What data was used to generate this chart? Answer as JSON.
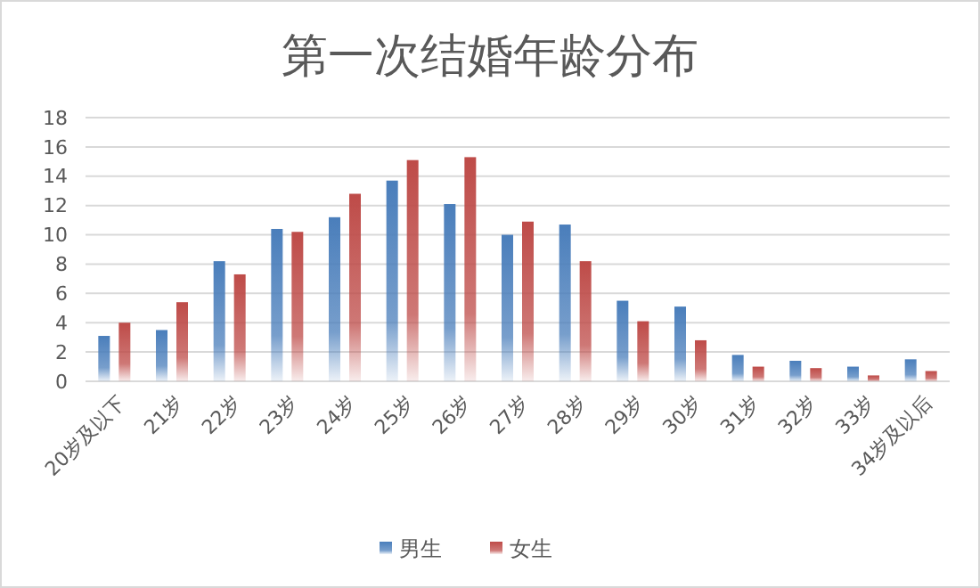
{
  "chart_data": {
    "type": "bar",
    "title": "第一次结婚年龄分布",
    "categories": [
      "20岁及以下",
      "21岁",
      "22岁",
      "23岁",
      "24岁",
      "25岁",
      "26岁",
      "27岁",
      "28岁",
      "29岁",
      "30岁",
      "31岁",
      "32岁",
      "33岁",
      "34岁及以后"
    ],
    "series": [
      {
        "name": "男生",
        "color": "#4a7ebb",
        "values": [
          3.1,
          3.5,
          8.2,
          10.4,
          11.2,
          13.7,
          12.1,
          10.0,
          10.7,
          5.5,
          5.1,
          1.8,
          1.4,
          1.0,
          1.5
        ]
      },
      {
        "name": "女生",
        "color": "#be4b48",
        "values": [
          4.0,
          5.4,
          7.3,
          10.2,
          12.8,
          15.1,
          15.3,
          10.9,
          8.2,
          4.1,
          2.8,
          1.0,
          0.9,
          0.4,
          0.7
        ]
      }
    ],
    "ylim": [
      0,
      18
    ],
    "yticks": [
      0,
      2,
      4,
      6,
      8,
      10,
      12,
      14,
      16,
      18
    ],
    "grid": "y",
    "legend": "bottom"
  }
}
